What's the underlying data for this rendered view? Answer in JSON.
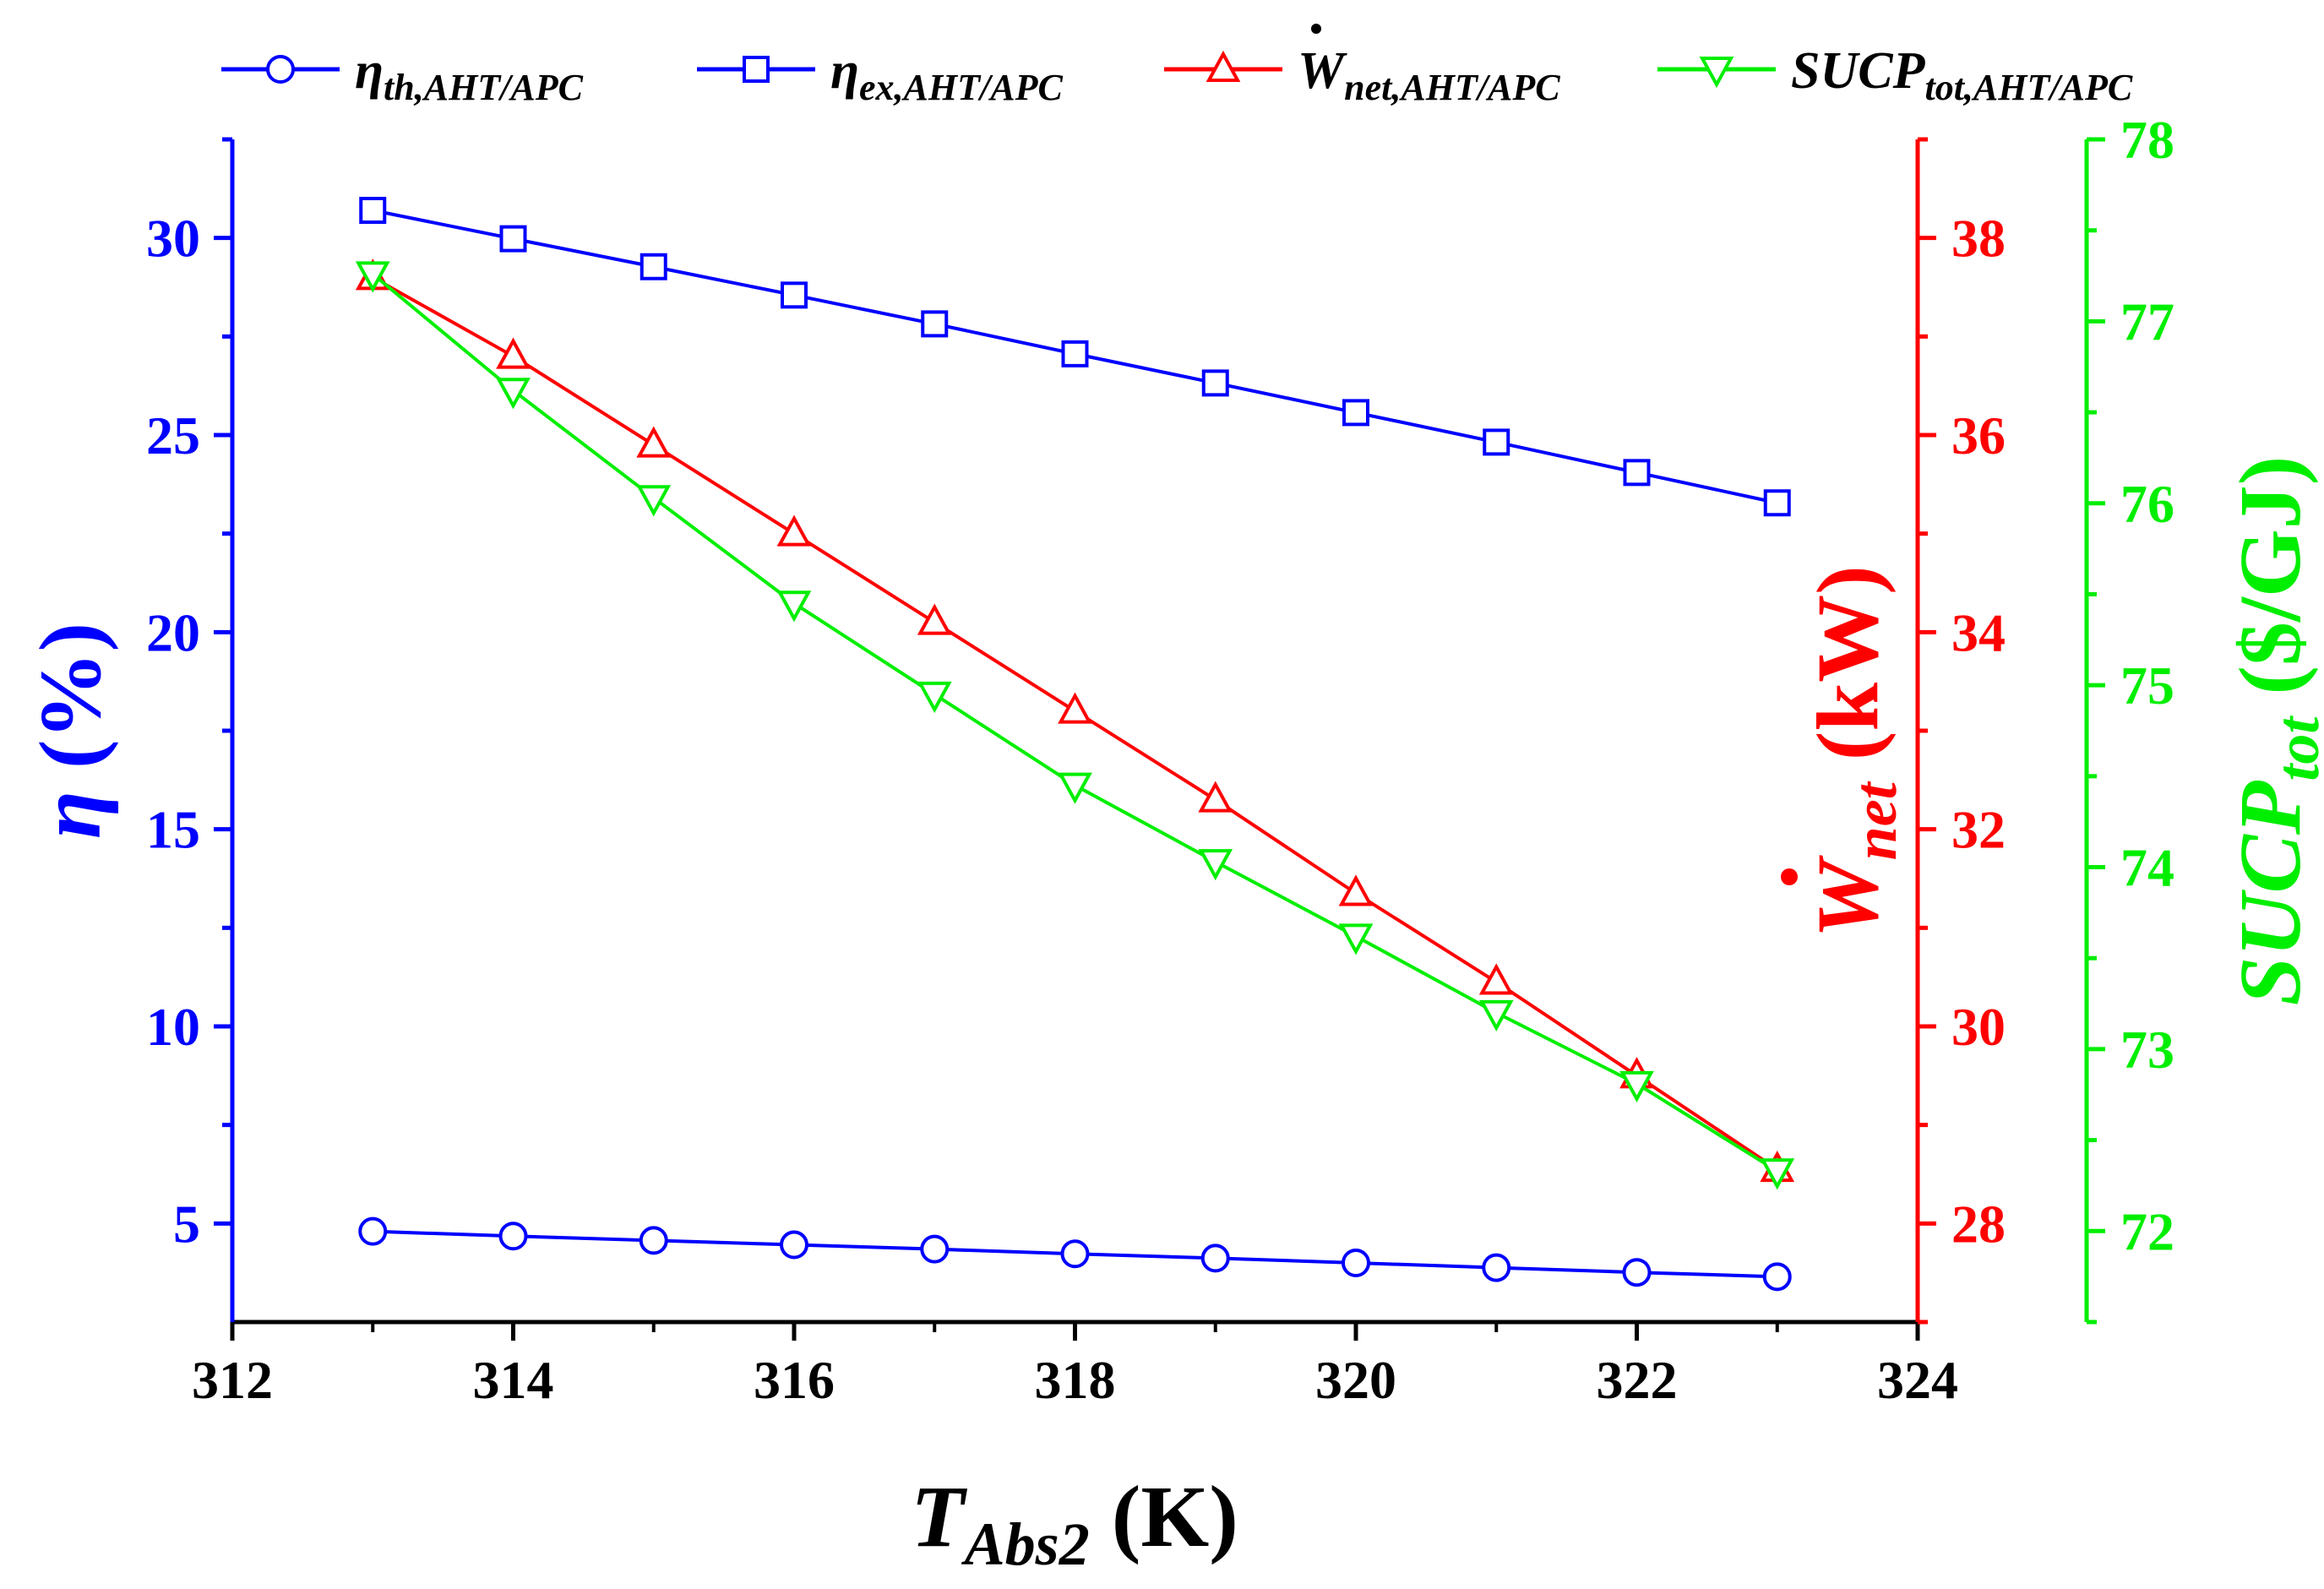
{
  "chart_data": {
    "type": "line",
    "x": [
      313,
      314,
      315,
      316,
      317,
      318,
      319,
      320,
      321,
      322,
      323
    ],
    "xlabel": {
      "main": "T",
      "sub": "Abs2",
      "unit": " (K)"
    },
    "xlim": [
      312,
      324
    ],
    "xticks": [
      "312",
      "314",
      "316",
      "318",
      "320",
      "322",
      "324"
    ],
    "axes": {
      "left": {
        "label_symbol": "η",
        "label_unit": " (%)",
        "ylim": [
          2.5,
          32.5
        ],
        "ticks": [
          "5",
          "10",
          "15",
          "20",
          "25",
          "30"
        ],
        "color": "#0000ff"
      },
      "right1": {
        "label_symbol": "W",
        "label_sub": "net",
        "label_unit": " (kW)",
        "ylim": [
          27,
          39
        ],
        "ticks": [
          "28",
          "30",
          "32",
          "34",
          "36",
          "38"
        ],
        "color": "#ff0000"
      },
      "right2": {
        "label_symbol": "SUCP",
        "label_sub": "tot",
        "label_unit": " ($/GJ)",
        "ylim": [
          71.5,
          78
        ],
        "ticks": [
          "72",
          "73",
          "74",
          "75",
          "76",
          "77",
          "78"
        ],
        "color": "#00ee00"
      }
    },
    "series": [
      {
        "name": "η th,AHT/APC",
        "legend_main": "η",
        "legend_sub": "th,AHT/APC",
        "axis": "left",
        "marker": "circle",
        "color": "#0000ff",
        "values": [
          4.8,
          4.68,
          4.57,
          4.46,
          4.35,
          4.23,
          4.12,
          4.0,
          3.88,
          3.76,
          3.65
        ]
      },
      {
        "name": "η ex,AHT/APC",
        "legend_main": "η",
        "legend_sub": "ex,AHT/APC",
        "axis": "left",
        "marker": "square",
        "color": "#0000ff",
        "values": [
          30.7,
          29.98,
          29.27,
          28.55,
          27.82,
          27.06,
          26.32,
          25.57,
          24.82,
          24.05,
          23.28
        ]
      },
      {
        "name": "Ẇ net,AHT/APC",
        "legend_main": "W",
        "legend_sub": "net,AHT/APC",
        "axis": "right1",
        "marker": "triangle-up",
        "color": "#ff0000",
        "values": [
          37.6,
          36.8,
          35.9,
          35.0,
          34.1,
          33.2,
          32.3,
          31.35,
          30.45,
          29.5,
          28.55
        ]
      },
      {
        "name": "SUCP tot,AHT/APC",
        "legend_main": "SUCP",
        "legend_sub": "tot,AHT/APC",
        "axis": "right2",
        "marker": "triangle-down",
        "color": "#00ee00",
        "values": [
          77.26,
          76.62,
          76.03,
          75.45,
          74.95,
          74.45,
          74.03,
          73.62,
          73.2,
          72.81,
          72.33
        ]
      }
    ]
  }
}
